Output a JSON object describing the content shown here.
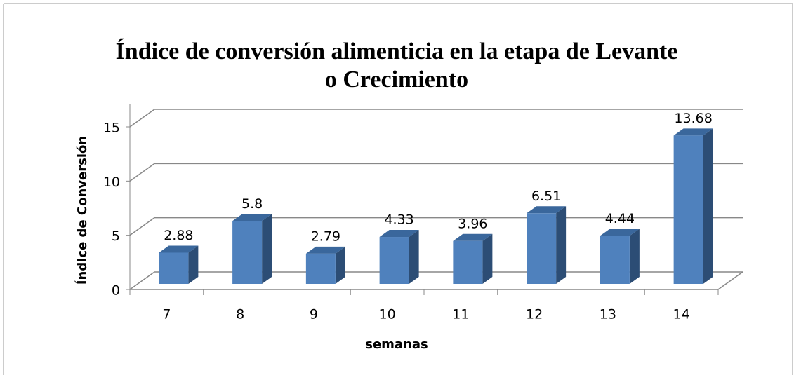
{
  "chart_data": {
    "type": "bar3d",
    "title": [
      "Índice de conversión alimenticia en la etapa de Levante",
      "o Crecimiento"
    ],
    "x_label": "semanas",
    "y_label": "Índice de Conversión",
    "categories": [
      "7",
      "8",
      "9",
      "10",
      "11",
      "12",
      "13",
      "14"
    ],
    "values": [
      2.88,
      5.8,
      2.79,
      4.33,
      3.96,
      6.51,
      4.44,
      13.68
    ],
    "color": "#4f81bd",
    "ylim": [
      0,
      15
    ],
    "yticks": [
      0,
      5,
      10,
      15
    ],
    "grid": true
  }
}
